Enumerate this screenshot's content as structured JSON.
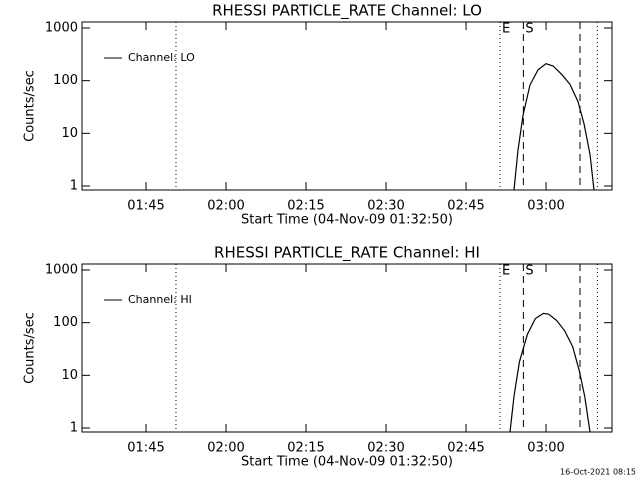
{
  "chart_data": [
    {
      "type": "line",
      "title": "RHESSI PARTICLE_RATE Channel: LO",
      "x_label": "Start Time (04-Nov-09 01:32:50)",
      "y_label": "Counts/sec",
      "log_y": true,
      "xlim": [
        "01:33:00",
        "03:12:22"
      ],
      "ylim": [
        0.84,
        1300
      ],
      "xticks": [
        "01:45",
        "02:00",
        "02:15",
        "02:30",
        "02:45",
        "03:00"
      ],
      "yticks": [
        1,
        10,
        100,
        1000
      ],
      "legend": "top-left",
      "x": [
        "02:54:00",
        "02:54:45",
        "02:55:41",
        "02:57:00",
        "02:58:30",
        "03:00:00",
        "03:01:19",
        "03:03:00",
        "03:04:30",
        "03:06:00",
        "03:07:08",
        "03:08:15",
        "03:09:00"
      ],
      "series": [
        {
          "name": "Channel: LO",
          "color": "#000000",
          "values": [
            0.84,
            4.8,
            22,
            83,
            160,
            210,
            190,
            130,
            85,
            40,
            15,
            4,
            0.84
          ]
        }
      ],
      "markers": [
        {
          "x": "01:50:37",
          "style": "dotted"
        },
        {
          "x": "02:51:22",
          "style": "dotted"
        },
        {
          "x": "02:55:45",
          "style": "dashed"
        },
        {
          "x": "03:06:22",
          "style": "dashed"
        },
        {
          "x": "03:09:37",
          "style": "dotted"
        }
      ],
      "annotations": [
        {
          "text": "E",
          "x": "02:51:22"
        },
        {
          "text": "S",
          "x": "02:55:45"
        }
      ]
    },
    {
      "type": "line",
      "title": "RHESSI PARTICLE_RATE Channel: HI",
      "x_label": "Start Time (04-Nov-09 01:32:50)",
      "y_label": "Counts/sec",
      "log_y": true,
      "xlim": [
        "01:33:00",
        "03:12:22"
      ],
      "ylim": [
        0.84,
        1300
      ],
      "xticks": [
        "01:45",
        "02:00",
        "02:15",
        "02:30",
        "02:45",
        "03:00"
      ],
      "yticks": [
        1,
        10,
        100,
        1000
      ],
      "legend": "top-left",
      "x": [
        "02:53:15",
        "02:54:00",
        "02:55:00",
        "02:56:30",
        "02:58:00",
        "02:59:30",
        "03:00:30",
        "03:02:00",
        "03:03:30",
        "03:05:00",
        "03:06:15",
        "03:07:15",
        "03:08:15"
      ],
      "series": [
        {
          "name": "Channel: HI",
          "color": "#000000",
          "values": [
            0.84,
            4,
            18,
            60,
            120,
            150,
            145,
            110,
            70,
            35,
            12,
            4,
            0.84
          ]
        }
      ],
      "markers": [
        {
          "x": "01:50:37",
          "style": "dotted"
        },
        {
          "x": "02:51:22",
          "style": "dotted"
        },
        {
          "x": "02:55:45",
          "style": "dashed"
        },
        {
          "x": "03:06:22",
          "style": "dashed"
        },
        {
          "x": "03:09:37",
          "style": "dotted"
        }
      ],
      "annotations": [
        {
          "text": "E",
          "x": "02:51:22"
        },
        {
          "text": "S",
          "x": "02:55:45"
        }
      ]
    }
  ],
  "footer": "16-Oct-2021 08:15"
}
